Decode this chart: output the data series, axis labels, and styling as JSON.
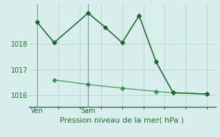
{
  "line1_x": [
    0,
    1,
    3,
    4,
    5,
    6,
    7,
    8,
    10
  ],
  "line1_y": [
    1018.85,
    1018.05,
    1019.2,
    1018.65,
    1018.05,
    1019.1,
    1017.3,
    1016.1,
    1016.05
  ],
  "line2_x": [
    1,
    3,
    5,
    7,
    8,
    10
  ],
  "line2_y": [
    1016.6,
    1016.42,
    1016.28,
    1016.15,
    1016.1,
    1016.05
  ],
  "ven_x": 0,
  "sam_x": 3,
  "yticks": [
    1016,
    1017,
    1018
  ],
  "ylim": [
    1015.55,
    1019.55
  ],
  "xlim": [
    -0.5,
    10.5
  ],
  "bg_color": "#d8eeec",
  "line1_color": "#1a6b2a",
  "line2_color": "#2d8a45",
  "grid_color": "#b8d8d4",
  "vline_color": "#7a9a96",
  "xlabel": "Pression niveau de la mer( hPa )",
  "xlabel_fontsize": 8,
  "tick_fontsize": 7,
  "markersize": 3,
  "linewidth1": 1.2,
  "linewidth2": 1.0
}
